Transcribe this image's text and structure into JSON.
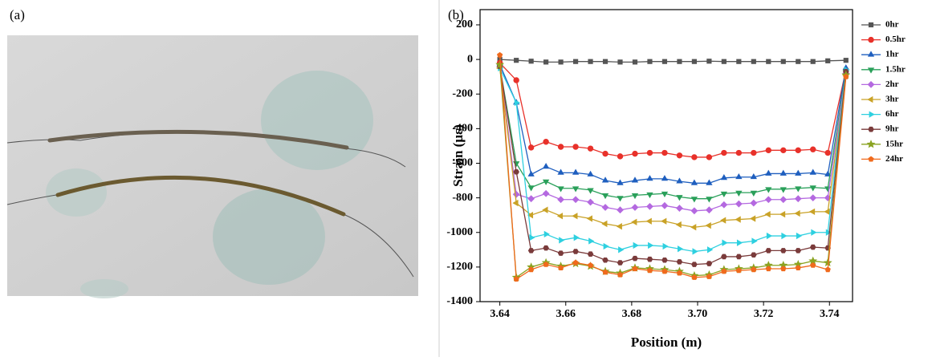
{
  "panels": {
    "a": "(a)",
    "b": "(b)"
  },
  "chart_data": {
    "type": "line",
    "xlabel": "Position (m)",
    "ylabel": "Strain (με)",
    "xlim": [
      3.634,
      3.747
    ],
    "ylim": [
      -1400,
      288
    ],
    "xticks": [
      3.64,
      3.66,
      3.68,
      {
        "value": 3.7,
        "label": "3.70"
      },
      3.72,
      3.74
    ],
    "yticks": [
      200,
      0,
      -200,
      -400,
      -600,
      -800,
      -1000,
      -1200,
      -1400
    ],
    "grid": false,
    "legend": "right",
    "x": [
      3.64,
      3.645,
      3.6495,
      3.654,
      3.6585,
      3.663,
      3.6675,
      3.672,
      3.6765,
      3.681,
      3.6855,
      3.69,
      3.6945,
      3.699,
      3.7035,
      3.708,
      3.7125,
      3.717,
      3.7215,
      3.726,
      3.7305,
      3.735,
      3.7395,
      3.745
    ],
    "series": [
      {
        "name": "0hr",
        "color": "#555555",
        "marker": "square",
        "values": [
          0,
          -5,
          -10,
          -15,
          -15,
          -12,
          -12,
          -12,
          -15,
          -15,
          -12,
          -12,
          -12,
          -12,
          -10,
          -12,
          -12,
          -12,
          -12,
          -12,
          -12,
          -12,
          -8,
          -5
        ]
      },
      {
        "name": "0.5hr",
        "color": "#e8312a",
        "marker": "circle",
        "values": [
          -20,
          -120,
          -509,
          -476,
          -505,
          -505,
          -515,
          -545,
          -560,
          -545,
          -540,
          -540,
          -555,
          -565,
          -565,
          -540,
          -540,
          -540,
          -525,
          -525,
          -525,
          -520,
          -540,
          -60
        ]
      },
      {
        "name": "1hr",
        "color": "#1f5fbf",
        "marker": "triangle-up",
        "values": [
          -30,
          -250,
          -665,
          -620,
          -655,
          -655,
          -665,
          -700,
          -715,
          -700,
          -690,
          -690,
          -705,
          -715,
          -715,
          -685,
          -680,
          -680,
          -660,
          -660,
          -660,
          -655,
          -665,
          -50
        ]
      },
      {
        "name": "1.5hr",
        "color": "#2aa05a",
        "marker": "triangle-down",
        "values": [
          -40,
          -600,
          -740,
          -705,
          -745,
          -745,
          -755,
          -785,
          -800,
          -785,
          -780,
          -775,
          -795,
          -805,
          -805,
          -775,
          -770,
          -770,
          -750,
          -750,
          -745,
          -740,
          -745,
          -70
        ]
      },
      {
        "name": "2hr",
        "color": "#b469e0",
        "marker": "diamond",
        "values": [
          -40,
          -780,
          -805,
          -775,
          -810,
          -810,
          -825,
          -855,
          -870,
          -855,
          -850,
          -845,
          -860,
          -875,
          -870,
          -840,
          -835,
          -830,
          -810,
          -810,
          -805,
          -800,
          -800,
          -80
        ]
      },
      {
        "name": "3hr",
        "color": "#c9a227",
        "marker": "triangle-left",
        "values": [
          -50,
          -830,
          -900,
          -870,
          -905,
          -905,
          -920,
          -950,
          -965,
          -940,
          -935,
          -935,
          -955,
          -970,
          -960,
          -930,
          -925,
          -920,
          -895,
          -895,
          -890,
          -880,
          -880,
          -90
        ]
      },
      {
        "name": "6hr",
        "color": "#2ed0e0",
        "marker": "triangle-right",
        "values": [
          -50,
          -250,
          -1030,
          -1010,
          -1045,
          -1030,
          -1050,
          -1080,
          -1100,
          -1075,
          -1075,
          -1080,
          -1095,
          -1110,
          -1100,
          -1060,
          -1060,
          -1050,
          -1020,
          -1020,
          -1020,
          -1000,
          -1000,
          -60
        ]
      },
      {
        "name": "9hr",
        "color": "#7a3b3b",
        "marker": "hexagon",
        "values": [
          -40,
          -650,
          -1105,
          -1090,
          -1120,
          -1110,
          -1125,
          -1160,
          -1175,
          -1150,
          -1155,
          -1160,
          -1170,
          -1185,
          -1180,
          -1140,
          -1140,
          -1130,
          -1105,
          -1105,
          -1105,
          -1085,
          -1090,
          -70
        ]
      },
      {
        "name": "15hr",
        "color": "#8aa321",
        "marker": "star",
        "values": [
          -30,
          -1260,
          -1200,
          -1175,
          -1195,
          -1180,
          -1195,
          -1225,
          -1235,
          -1205,
          -1210,
          -1215,
          -1225,
          -1250,
          -1245,
          -1215,
          -1210,
          -1205,
          -1190,
          -1190,
          -1185,
          -1165,
          -1175,
          -90
        ]
      },
      {
        "name": "24hr",
        "color": "#f06a1d",
        "marker": "pentagon",
        "values": [
          25,
          -1270,
          -1215,
          -1185,
          -1205,
          -1175,
          -1190,
          -1230,
          -1245,
          -1210,
          -1220,
          -1225,
          -1235,
          -1260,
          -1255,
          -1225,
          -1220,
          -1215,
          -1210,
          -1210,
          -1205,
          -1190,
          -1215,
          -100
        ]
      }
    ]
  }
}
